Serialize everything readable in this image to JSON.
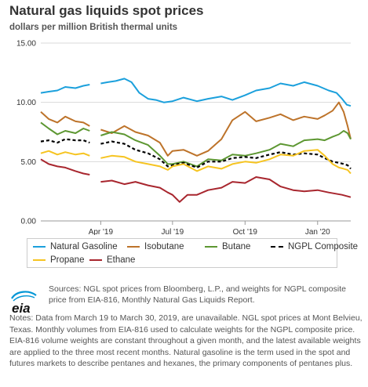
{
  "header": {
    "title": "Natural gas liquids spot prices",
    "subtitle": "dollars per million British thermal units"
  },
  "chart_data": {
    "type": "line",
    "title": "Natural gas liquids spot prices",
    "ylabel": "dollars per million British thermal units",
    "xlabel": "",
    "ylim": [
      0,
      15
    ],
    "yticks": [
      "0.00",
      "5.00",
      "10.00",
      "15.00"
    ],
    "xlim": [
      "2019-01-15",
      "2020-02-12"
    ],
    "xticks": [
      {
        "label": "Apr '19",
        "date": "2019-04-01"
      },
      {
        "label": "Jul '19",
        "date": "2019-07-01"
      },
      {
        "label": "Oct '19",
        "date": "2019-10-01"
      },
      {
        "label": "Jan '20",
        "date": "2020-01-01"
      }
    ],
    "grid": "horizontal",
    "legend_position": "bottom",
    "series": [
      {
        "name": "Natural Gasoline",
        "color": "#1ba0dc",
        "style": "solid",
        "points": [
          [
            "2019-01-15",
            10.8
          ],
          [
            "2019-01-25",
            10.9
          ],
          [
            "2019-02-05",
            11.0
          ],
          [
            "2019-02-15",
            11.3
          ],
          [
            "2019-02-28",
            11.2
          ],
          [
            "2019-03-10",
            11.4
          ],
          [
            "2019-03-18",
            11.5
          ],
          [
            "2019-04-01",
            11.6
          ],
          [
            "2019-04-10",
            11.7
          ],
          [
            "2019-04-20",
            11.8
          ],
          [
            "2019-05-01",
            12.0
          ],
          [
            "2019-05-10",
            11.7
          ],
          [
            "2019-05-20",
            10.8
          ],
          [
            "2019-05-31",
            10.3
          ],
          [
            "2019-06-10",
            10.2
          ],
          [
            "2019-06-20",
            10.0
          ],
          [
            "2019-07-01",
            10.1
          ],
          [
            "2019-07-15",
            10.4
          ],
          [
            "2019-08-01",
            10.1
          ],
          [
            "2019-08-15",
            10.3
          ],
          [
            "2019-09-01",
            10.5
          ],
          [
            "2019-09-15",
            10.2
          ],
          [
            "2019-10-01",
            10.6
          ],
          [
            "2019-10-15",
            11.0
          ],
          [
            "2019-11-01",
            11.2
          ],
          [
            "2019-11-15",
            11.6
          ],
          [
            "2019-12-01",
            11.4
          ],
          [
            "2019-12-15",
            11.7
          ],
          [
            "2020-01-01",
            11.4
          ],
          [
            "2020-01-15",
            11.0
          ],
          [
            "2020-01-25",
            10.8
          ],
          [
            "2020-02-01",
            10.3
          ],
          [
            "2020-02-07",
            9.8
          ],
          [
            "2020-02-12",
            9.7
          ]
        ]
      },
      {
        "name": "Isobutane",
        "color": "#bd732a",
        "style": "solid",
        "points": [
          [
            "2019-01-15",
            9.2
          ],
          [
            "2019-01-25",
            8.6
          ],
          [
            "2019-02-05",
            8.3
          ],
          [
            "2019-02-15",
            8.8
          ],
          [
            "2019-02-28",
            8.4
          ],
          [
            "2019-03-10",
            8.3
          ],
          [
            "2019-03-18",
            8.0
          ],
          [
            "2019-04-01",
            7.7
          ],
          [
            "2019-04-15",
            7.4
          ],
          [
            "2019-05-01",
            8.0
          ],
          [
            "2019-05-15",
            7.5
          ],
          [
            "2019-05-31",
            7.2
          ],
          [
            "2019-06-15",
            6.6
          ],
          [
            "2019-06-25",
            5.5
          ],
          [
            "2019-07-01",
            5.9
          ],
          [
            "2019-07-15",
            6.0
          ],
          [
            "2019-08-01",
            5.5
          ],
          [
            "2019-08-15",
            5.9
          ],
          [
            "2019-09-01",
            6.9
          ],
          [
            "2019-09-15",
            8.5
          ],
          [
            "2019-10-01",
            9.2
          ],
          [
            "2019-10-15",
            8.4
          ],
          [
            "2019-11-01",
            8.7
          ],
          [
            "2019-11-15",
            9.0
          ],
          [
            "2019-12-01",
            8.5
          ],
          [
            "2019-12-15",
            8.8
          ],
          [
            "2020-01-01",
            8.6
          ],
          [
            "2020-01-10",
            8.9
          ],
          [
            "2020-01-20",
            9.3
          ],
          [
            "2020-01-28",
            10.0
          ],
          [
            "2020-02-03",
            9.2
          ],
          [
            "2020-02-08",
            8.0
          ],
          [
            "2020-02-12",
            6.9
          ]
        ]
      },
      {
        "name": "Butane",
        "color": "#5d9732",
        "style": "solid",
        "points": [
          [
            "2019-01-15",
            8.3
          ],
          [
            "2019-01-25",
            7.8
          ],
          [
            "2019-02-05",
            7.3
          ],
          [
            "2019-02-15",
            7.6
          ],
          [
            "2019-02-28",
            7.4
          ],
          [
            "2019-03-10",
            7.8
          ],
          [
            "2019-03-18",
            7.6
          ],
          [
            "2019-04-01",
            7.2
          ],
          [
            "2019-04-15",
            7.5
          ],
          [
            "2019-05-01",
            7.3
          ],
          [
            "2019-05-15",
            6.8
          ],
          [
            "2019-05-31",
            6.4
          ],
          [
            "2019-06-15",
            5.5
          ],
          [
            "2019-06-25",
            4.8
          ],
          [
            "2019-07-01",
            4.8
          ],
          [
            "2019-07-15",
            5.0
          ],
          [
            "2019-08-01",
            4.6
          ],
          [
            "2019-08-15",
            5.2
          ],
          [
            "2019-09-01",
            5.1
          ],
          [
            "2019-09-15",
            5.6
          ],
          [
            "2019-10-01",
            5.5
          ],
          [
            "2019-10-15",
            5.7
          ],
          [
            "2019-11-01",
            6.0
          ],
          [
            "2019-11-15",
            6.5
          ],
          [
            "2019-12-01",
            6.3
          ],
          [
            "2019-12-15",
            6.8
          ],
          [
            "2020-01-01",
            6.9
          ],
          [
            "2020-01-10",
            6.8
          ],
          [
            "2020-01-20",
            7.1
          ],
          [
            "2020-01-28",
            7.3
          ],
          [
            "2020-02-03",
            7.6
          ],
          [
            "2020-02-08",
            7.4
          ],
          [
            "2020-02-12",
            6.9
          ]
        ]
      },
      {
        "name": "NGPL Composite",
        "color": "#000000",
        "style": "dashed",
        "points": [
          [
            "2019-01-15",
            6.7
          ],
          [
            "2019-01-25",
            6.8
          ],
          [
            "2019-02-05",
            6.6
          ],
          [
            "2019-02-15",
            6.9
          ],
          [
            "2019-02-28",
            6.8
          ],
          [
            "2019-03-10",
            6.8
          ],
          [
            "2019-03-18",
            6.6
          ],
          [
            "2019-04-01",
            6.5
          ],
          [
            "2019-04-15",
            6.7
          ],
          [
            "2019-05-01",
            6.5
          ],
          [
            "2019-05-15",
            6.0
          ],
          [
            "2019-05-31",
            5.7
          ],
          [
            "2019-06-15",
            5.2
          ],
          [
            "2019-06-25",
            4.6
          ],
          [
            "2019-07-01",
            4.7
          ],
          [
            "2019-07-15",
            4.9
          ],
          [
            "2019-08-01",
            4.5
          ],
          [
            "2019-08-15",
            5.0
          ],
          [
            "2019-09-01",
            5.0
          ],
          [
            "2019-09-15",
            5.3
          ],
          [
            "2019-10-01",
            5.4
          ],
          [
            "2019-10-15",
            5.3
          ],
          [
            "2019-11-01",
            5.6
          ],
          [
            "2019-11-15",
            5.8
          ],
          [
            "2019-12-01",
            5.6
          ],
          [
            "2019-12-15",
            5.7
          ],
          [
            "2020-01-01",
            5.6
          ],
          [
            "2020-01-10",
            5.3
          ],
          [
            "2020-01-20",
            5.0
          ],
          [
            "2020-01-28",
            4.9
          ],
          [
            "2020-02-03",
            4.8
          ],
          [
            "2020-02-08",
            4.7
          ],
          [
            "2020-02-12",
            4.4
          ]
        ]
      },
      {
        "name": "Propane",
        "color": "#f6c421",
        "style": "solid",
        "points": [
          [
            "2019-01-15",
            5.7
          ],
          [
            "2019-01-25",
            5.9
          ],
          [
            "2019-02-05",
            5.6
          ],
          [
            "2019-02-15",
            5.8
          ],
          [
            "2019-02-28",
            5.6
          ],
          [
            "2019-03-10",
            5.7
          ],
          [
            "2019-03-18",
            5.5
          ],
          [
            "2019-04-01",
            5.3
          ],
          [
            "2019-04-15",
            5.5
          ],
          [
            "2019-05-01",
            5.4
          ],
          [
            "2019-05-15",
            5.0
          ],
          [
            "2019-05-31",
            4.8
          ],
          [
            "2019-06-15",
            4.6
          ],
          [
            "2019-06-25",
            4.3
          ],
          [
            "2019-07-01",
            4.6
          ],
          [
            "2019-07-15",
            4.8
          ],
          [
            "2019-08-01",
            4.2
          ],
          [
            "2019-08-15",
            4.6
          ],
          [
            "2019-09-01",
            4.4
          ],
          [
            "2019-09-15",
            4.8
          ],
          [
            "2019-10-01",
            5.0
          ],
          [
            "2019-10-15",
            4.9
          ],
          [
            "2019-11-01",
            5.2
          ],
          [
            "2019-11-15",
            5.6
          ],
          [
            "2019-12-01",
            5.5
          ],
          [
            "2019-12-15",
            5.9
          ],
          [
            "2020-01-01",
            6.0
          ],
          [
            "2020-01-10",
            5.5
          ],
          [
            "2020-01-20",
            4.8
          ],
          [
            "2020-01-28",
            4.5
          ],
          [
            "2020-02-03",
            4.4
          ],
          [
            "2020-02-08",
            4.3
          ],
          [
            "2020-02-12",
            4.0
          ]
        ]
      },
      {
        "name": "Ethane",
        "color": "#a8262e",
        "style": "solid",
        "points": [
          [
            "2019-01-15",
            5.2
          ],
          [
            "2019-01-25",
            4.8
          ],
          [
            "2019-02-05",
            4.6
          ],
          [
            "2019-02-15",
            4.5
          ],
          [
            "2019-02-28",
            4.2
          ],
          [
            "2019-03-10",
            4.0
          ],
          [
            "2019-03-18",
            3.9
          ],
          [
            "2019-04-01",
            3.3
          ],
          [
            "2019-04-15",
            3.4
          ],
          [
            "2019-05-01",
            3.1
          ],
          [
            "2019-05-15",
            3.3
          ],
          [
            "2019-05-31",
            3.0
          ],
          [
            "2019-06-15",
            2.8
          ],
          [
            "2019-06-25",
            2.4
          ],
          [
            "2019-07-01",
            2.2
          ],
          [
            "2019-07-10",
            1.6
          ],
          [
            "2019-07-20",
            2.2
          ],
          [
            "2019-08-01",
            2.2
          ],
          [
            "2019-08-15",
            2.6
          ],
          [
            "2019-09-01",
            2.8
          ],
          [
            "2019-09-15",
            3.3
          ],
          [
            "2019-10-01",
            3.2
          ],
          [
            "2019-10-15",
            3.7
          ],
          [
            "2019-11-01",
            3.5
          ],
          [
            "2019-11-15",
            2.9
          ],
          [
            "2019-12-01",
            2.6
          ],
          [
            "2019-12-15",
            2.5
          ],
          [
            "2020-01-01",
            2.6
          ],
          [
            "2020-01-15",
            2.4
          ],
          [
            "2020-02-01",
            2.2
          ],
          [
            "2020-02-12",
            2.0
          ]
        ]
      }
    ],
    "gap": [
      "2019-03-19",
      "2019-03-30"
    ]
  },
  "legend": {
    "items": [
      {
        "label": "Natural Gasoline",
        "color": "#1ba0dc",
        "style": "solid"
      },
      {
        "label": "Isobutane",
        "color": "#bd732a",
        "style": "solid"
      },
      {
        "label": "Butane",
        "color": "#5d9732",
        "style": "solid"
      },
      {
        "label": "NGPL Composite",
        "color": "#000000",
        "style": "dashed"
      },
      {
        "label": "Propane",
        "color": "#f6c421",
        "style": "solid"
      },
      {
        "label": "Ethane",
        "color": "#a8262e",
        "style": "solid"
      }
    ]
  },
  "footer": {
    "logo_text": "eia",
    "sources": "Sources: NGL spot prices from Bloomberg, L.P., and weights for NGPL composite price from EIA-816, Monthly Natural Gas Liquids Report.",
    "notes": "Notes: Data from March 19 to March 30, 2019, are unavailable. NGL spot prices at Mont Belvieu, Texas. Monthly volumes from EIA-816 used to calculate weights for the NGPL composite price. EIA-816 volume weights are constant throughout a given month, and the latest available weights are applied to the three most recent months. Natural gasoline is the term used in the spot and futures markets to describe pentanes and hexanes, the primary components of pentanes plus."
  }
}
